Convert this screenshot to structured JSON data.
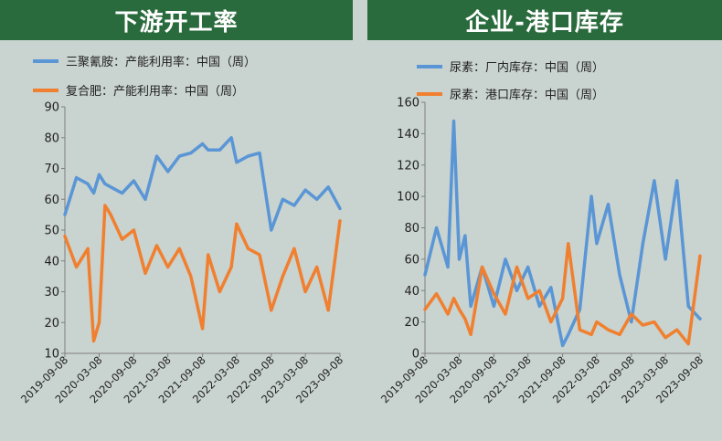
{
  "colors": {
    "header_bg": "#2a6b3d",
    "panel_bg": "#c9d3cf",
    "blue": "#5a96d6",
    "orange": "#f08030",
    "axis": "#7f7f7f",
    "text": "#222222"
  },
  "headers": {
    "left": "下游开工率",
    "right": "企业-港口库存"
  },
  "chart_data": [
    {
      "type": "line",
      "title": "下游开工率",
      "xlabel": "",
      "ylabel": "",
      "ylim": [
        10,
        90
      ],
      "yticks": [
        10,
        20,
        30,
        40,
        50,
        60,
        70,
        80,
        90
      ],
      "x_tick_labels": [
        "2019-09-08",
        "2020-03-08",
        "2020-09-08",
        "2021-03-08",
        "2021-09-08",
        "2022-03-08",
        "2022-09-08",
        "2023-03-08",
        "2023-09-08"
      ],
      "x": [
        "2019-09-08",
        "2019-11-08",
        "2020-01-08",
        "2020-02-08",
        "2020-03-08",
        "2020-04-08",
        "2020-05-08",
        "2020-07-08",
        "2020-09-08",
        "2020-11-08",
        "2021-01-08",
        "2021-03-08",
        "2021-05-08",
        "2021-07-08",
        "2021-09-08",
        "2021-10-08",
        "2021-12-08",
        "2022-02-08",
        "2022-03-08",
        "2022-05-08",
        "2022-07-08",
        "2022-09-08",
        "2022-11-08",
        "2023-01-08",
        "2023-03-08",
        "2023-05-08",
        "2023-07-08",
        "2023-09-08"
      ],
      "series": [
        {
          "name": "三聚氰胺：产能利用率：中国（周）",
          "color": "#5a96d6",
          "values": [
            55,
            67,
            65,
            62,
            68,
            65,
            64,
            62,
            66,
            60,
            74,
            69,
            74,
            75,
            78,
            76,
            76,
            80,
            72,
            74,
            75,
            50,
            60,
            58,
            63,
            60,
            64,
            57
          ]
        },
        {
          "name": "复合肥：产能利用率：中国（周）",
          "color": "#f08030",
          "values": [
            48,
            38,
            44,
            14,
            20,
            58,
            55,
            47,
            50,
            36,
            45,
            38,
            44,
            35,
            18,
            42,
            30,
            38,
            52,
            44,
            42,
            24,
            35,
            44,
            30,
            38,
            24,
            53
          ]
        }
      ]
    },
    {
      "type": "line",
      "title": "企业-港口库存",
      "xlabel": "",
      "ylabel": "",
      "ylim": [
        0,
        160
      ],
      "yticks": [
        0,
        20,
        40,
        60,
        80,
        100,
        120,
        140,
        160
      ],
      "x_tick_labels": [
        "2019-09-08",
        "2020-03-08",
        "2020-09-08",
        "2021-03-08",
        "2021-09-08",
        "2022-03-08",
        "2022-09-08",
        "2023-03-08",
        "2023-09-08"
      ],
      "x": [
        "2019-09-08",
        "2019-11-08",
        "2020-01-08",
        "2020-02-08",
        "2020-03-08",
        "2020-04-08",
        "2020-05-08",
        "2020-07-08",
        "2020-09-08",
        "2020-11-08",
        "2021-01-08",
        "2021-03-08",
        "2021-05-08",
        "2021-07-08",
        "2021-09-08",
        "2021-10-08",
        "2021-12-08",
        "2022-02-08",
        "2022-03-08",
        "2022-05-08",
        "2022-07-08",
        "2022-09-08",
        "2022-11-08",
        "2023-01-08",
        "2023-03-08",
        "2023-05-08",
        "2023-07-08",
        "2023-09-08"
      ],
      "series": [
        {
          "name": "尿素：厂内库存：中国（周）",
          "color": "#5a96d6",
          "values": [
            50,
            80,
            55,
            148,
            60,
            75,
            30,
            55,
            30,
            60,
            40,
            55,
            30,
            42,
            5,
            12,
            28,
            100,
            70,
            95,
            50,
            20,
            70,
            110,
            60,
            110,
            30,
            22
          ]
        },
        {
          "name": "尿素：港口库存：中国（周）",
          "color": "#f08030",
          "values": [
            28,
            38,
            25,
            35,
            28,
            22,
            12,
            55,
            38,
            25,
            55,
            35,
            40,
            20,
            35,
            70,
            15,
            12,
            20,
            15,
            12,
            25,
            18,
            20,
            10,
            15,
            6,
            62
          ]
        }
      ]
    }
  ]
}
